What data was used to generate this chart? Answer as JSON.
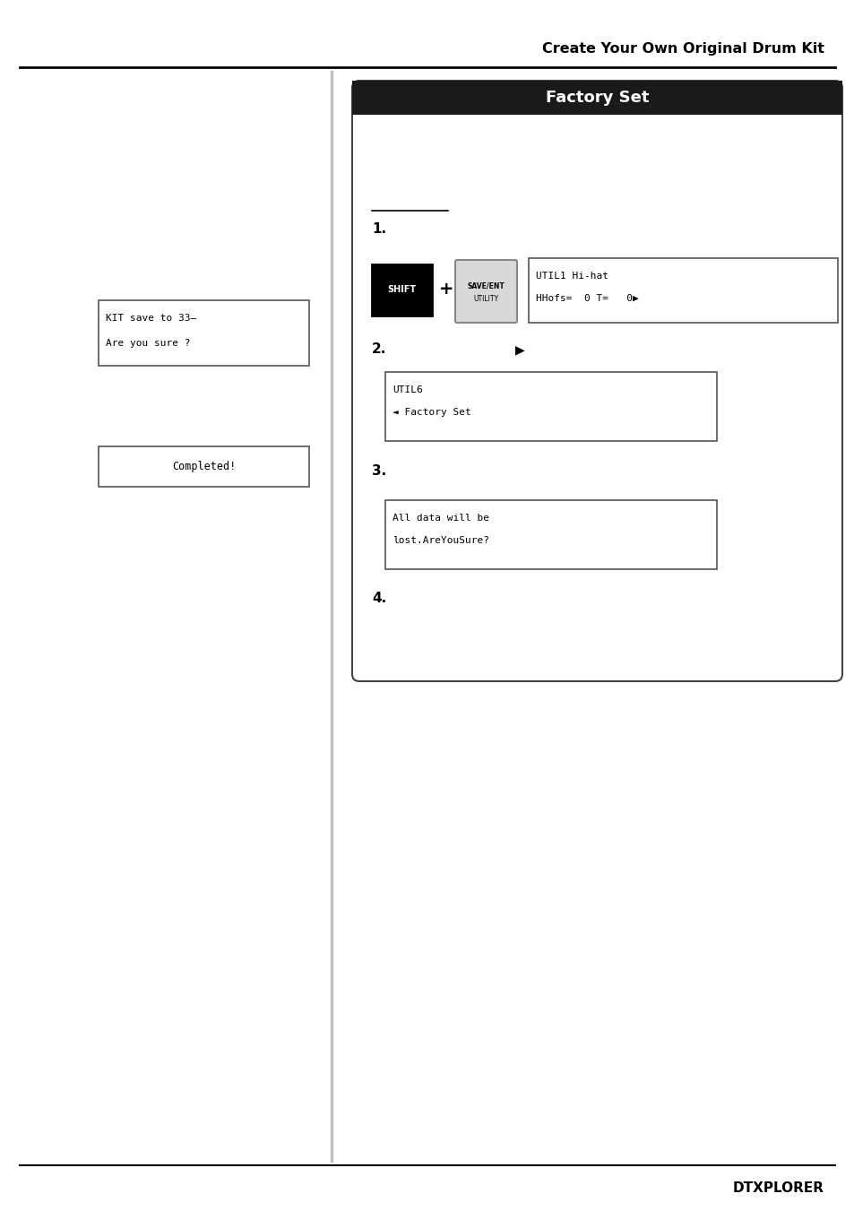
{
  "title": "Create Your Own Original Drum Kit",
  "section_title": "Factory Set",
  "page_label": "DTXPLORER",
  "bg_color": "#ffffff",
  "header_bg": "#1a1a1a",
  "header_text_color": "#ffffff",
  "lcd1_line1": "UTIL1 Hi-hat",
  "lcd1_line2": "HHofs=  0 T=   0▶",
  "lcd2_line1": "UTIL6",
  "lcd2_line2": "◄ Factory Set",
  "lcd3_line1": "All data will be",
  "lcd3_line2": "lost.AreYouSure?",
  "left_box1_line1": "KIT save to 33—",
  "left_box1_line2": "Are you sure ?",
  "left_box2_line1": "Completed!"
}
